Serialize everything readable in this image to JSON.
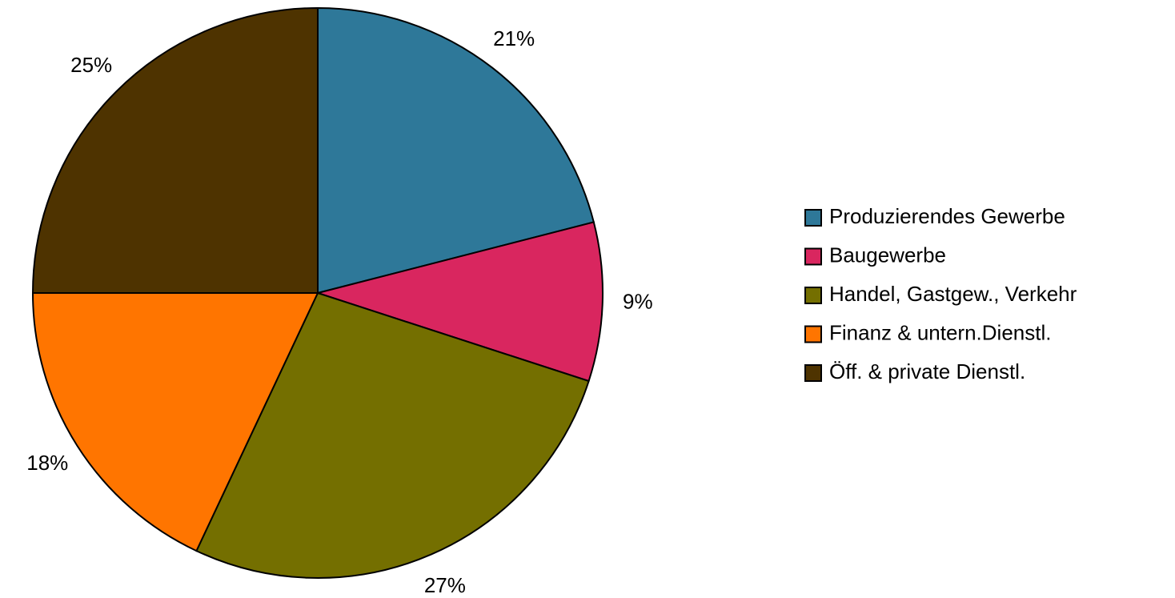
{
  "chart_data": {
    "type": "pie",
    "categories": [
      "Produzierendes Gewerbe",
      "Baugewerbe",
      "Handel, Gastgew., Verkehr",
      "Finanz & untern.Dienstl.",
      "Öff. & private Dienstl."
    ],
    "values": [
      21,
      9,
      27,
      18,
      25
    ],
    "value_labels": [
      "21%",
      "9%",
      "27%",
      "18%",
      "25%"
    ],
    "colors": [
      "#2e7899",
      "#d9265f",
      "#746f00",
      "#ff7500",
      "#4e3300"
    ],
    "legend": "right"
  }
}
